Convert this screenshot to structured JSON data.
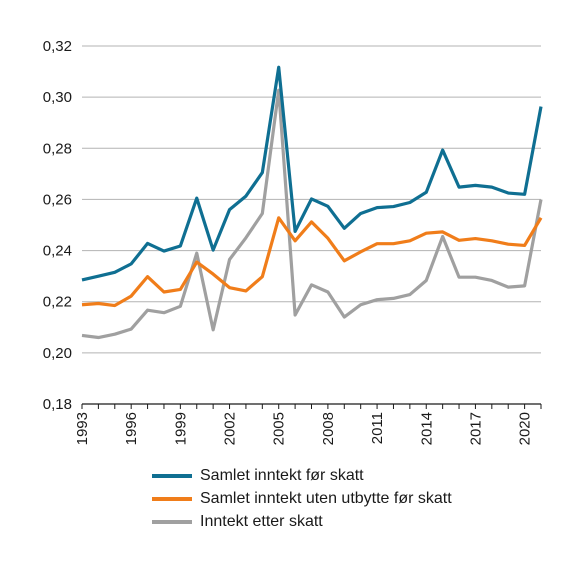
{
  "chart_data": {
    "type": "line",
    "title": "",
    "xlabel": "",
    "ylabel": "",
    "ylim": [
      0.18,
      0.32
    ],
    "y_ticks": [
      "0,18",
      "0,20",
      "0,22",
      "0,24",
      "0,26",
      "0,28",
      "0,30",
      "0,32"
    ],
    "x_ticks": [
      "1993",
      "1996",
      "1999",
      "2002",
      "2005",
      "2008",
      "2011",
      "2014",
      "2017",
      "2020"
    ],
    "grid": "horizontal",
    "legend_position": "bottom",
    "x": [
      1993,
      1994,
      1995,
      1996,
      1997,
      1998,
      1999,
      2000,
      2001,
      2002,
      2003,
      2004,
      2005,
      2006,
      2007,
      2008,
      2009,
      2010,
      2011,
      2012,
      2013,
      2014,
      2015,
      2016,
      2017,
      2018,
      2019,
      2020,
      2021
    ],
    "series": [
      {
        "name": "Samlet inntekt før skatt",
        "color": "#0f6f92",
        "values": [
          0.2285,
          0.23,
          0.2315,
          0.2348,
          0.2428,
          0.2398,
          0.2418,
          0.2605,
          0.2402,
          0.256,
          0.2613,
          0.2705,
          0.3117,
          0.2475,
          0.2602,
          0.2573,
          0.2487,
          0.2545,
          0.2568,
          0.2572,
          0.2588,
          0.2628,
          0.2793,
          0.2648,
          0.2655,
          0.2648,
          0.2625,
          0.262,
          0.2963
        ]
      },
      {
        "name": "Samlet inntekt uten utbytte før skatt",
        "color": "#f07d1a",
        "values": [
          0.2188,
          0.2193,
          0.2185,
          0.2222,
          0.2298,
          0.2238,
          0.2248,
          0.2355,
          0.2308,
          0.2255,
          0.2242,
          0.2298,
          0.2528,
          0.2438,
          0.2512,
          0.2448,
          0.236,
          0.2395,
          0.2427,
          0.2427,
          0.2438,
          0.2468,
          0.2473,
          0.244,
          0.2447,
          0.2438,
          0.2425,
          0.242,
          0.2528
        ]
      },
      {
        "name": "Inntekt etter skatt",
        "color": "#a0a0a0",
        "values": [
          0.2068,
          0.206,
          0.2073,
          0.2093,
          0.2167,
          0.2157,
          0.2182,
          0.239,
          0.209,
          0.2365,
          0.245,
          0.2545,
          0.3027,
          0.2148,
          0.2266,
          0.2238,
          0.214,
          0.2188,
          0.2208,
          0.2213,
          0.2228,
          0.2283,
          0.2455,
          0.2296,
          0.2296,
          0.2283,
          0.2257,
          0.2262,
          0.26
        ]
      }
    ]
  }
}
